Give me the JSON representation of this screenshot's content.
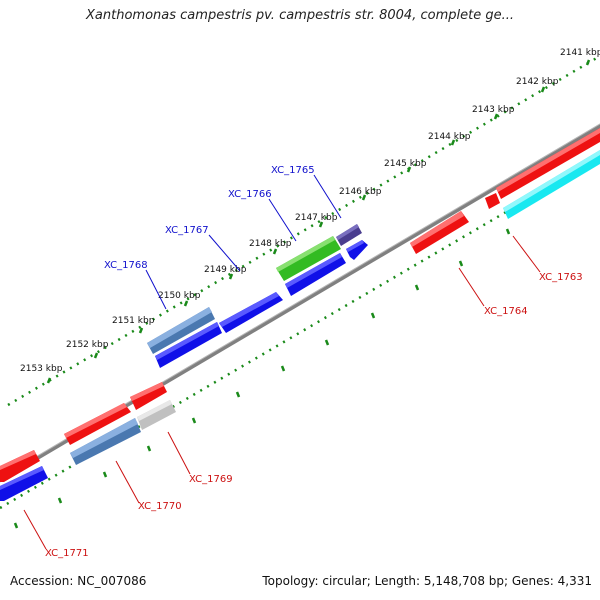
{
  "title": "Xanthomonas campestris pv. campestris str. 8004, complete ge...",
  "footer": {
    "accession": "Accession: NC_007086",
    "summary": "Topology: circular; Length: 5,148,708 bp; Genes: 4,331"
  },
  "ticks": [
    "2141 kbp",
    "2142 kbp",
    "2143 kbp",
    "2144 kbp",
    "2145 kbp",
    "2146 kbp",
    "2147 kbp",
    "2148 kbp",
    "2149 kbp",
    "2150 kbp",
    "2151 kbp",
    "2152 kbp",
    "2153 kbp"
  ],
  "gene_labels_top": [
    "XC_1765",
    "XC_1766",
    "XC_1767",
    "XC_1768"
  ],
  "gene_labels_bottom": [
    "XC_1763",
    "XC_1764",
    "XC_1769",
    "XC_1770",
    "XC_1771"
  ],
  "colors": {
    "forward": "#ee1111",
    "reverse": "#1010e8",
    "steelblue": "#4a78b0",
    "green": "#33bb22",
    "purple": "#4a3d8f",
    "cyan": "#18e8f0",
    "grey": "#c0c0c0",
    "tick": "#1a8a1a",
    "label_top": "#1010cc",
    "label_bottom": "#cc1111"
  }
}
